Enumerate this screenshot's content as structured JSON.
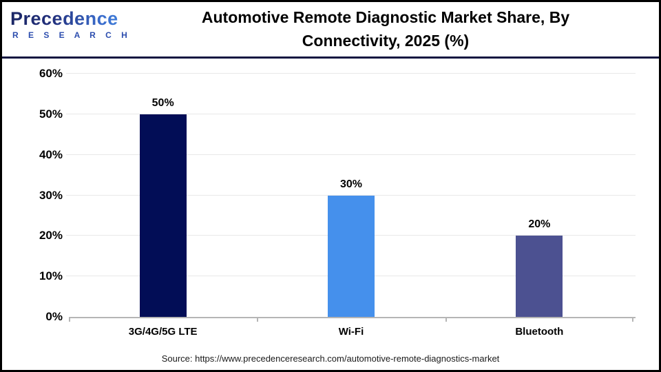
{
  "header": {
    "logo": {
      "brand": "Precedence",
      "subbrand": "R E S E A R C H"
    },
    "title_line1": "Automotive Remote Diagnostic Market Share, By",
    "title_line2": "Connectivity, 2025 (%)"
  },
  "chart_data": {
    "type": "bar",
    "title": "Automotive Remote Diagnostic Market Share, By Connectivity, 2025 (%)",
    "categories": [
      "3G/4G/5G LTE",
      "Wi-Fi",
      "Bluetooth"
    ],
    "values": [
      50,
      30,
      20
    ],
    "value_labels": [
      "50%",
      "30%",
      "20%"
    ],
    "bar_colors": [
      "#020d56",
      "#4590ec",
      "#4c5191"
    ],
    "xlabel": "",
    "ylabel": "",
    "ylim": [
      0,
      60
    ],
    "ytick_step": 10,
    "yticks": [
      "0%",
      "10%",
      "20%",
      "30%",
      "40%",
      "50%",
      "60%"
    ],
    "grid": true,
    "legend_position": "none",
    "gridline_color": "#e8e8e8",
    "axis_color": "#b5b5b5"
  },
  "footer": {
    "source_text": "Source: https://www.precedenceresearch.com/automotive-remote-diagnostics-market"
  }
}
